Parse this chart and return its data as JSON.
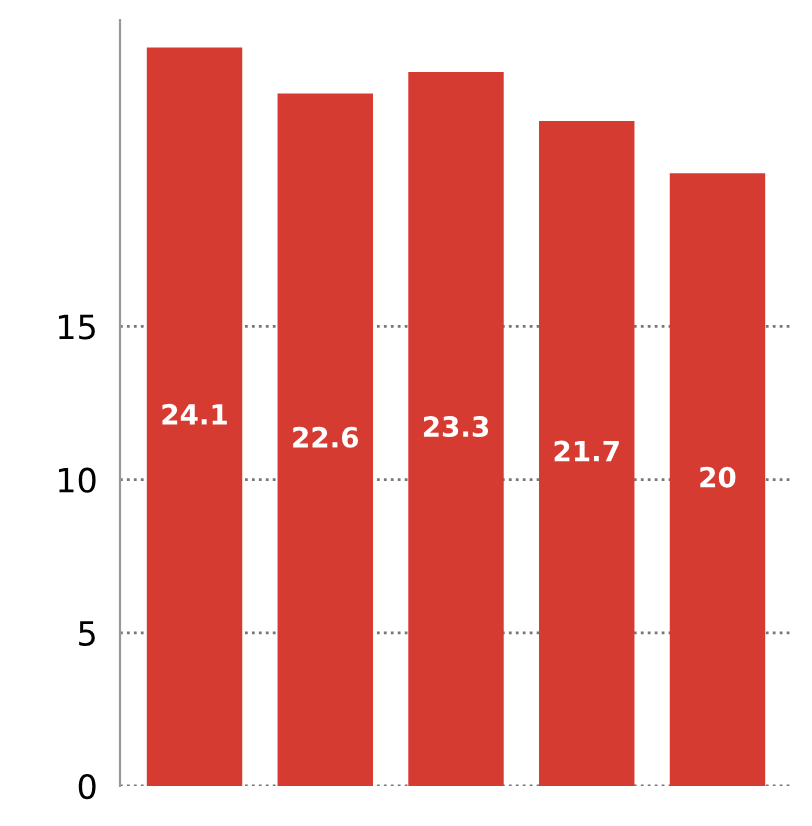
{
  "chart_data": {
    "type": "bar",
    "categories": [
      null,
      null,
      null,
      null,
      null
    ],
    "values": [
      24.1,
      22.6,
      23.3,
      21.7,
      20.0
    ],
    "value_labels": [
      "24.1",
      "22.6",
      "23.3",
      "21.7",
      "20"
    ],
    "color": "#d63b31",
    "ylim": [
      0,
      25
    ],
    "yticks": [
      0,
      5,
      10,
      15
    ],
    "grid": "y",
    "legend": false
  }
}
